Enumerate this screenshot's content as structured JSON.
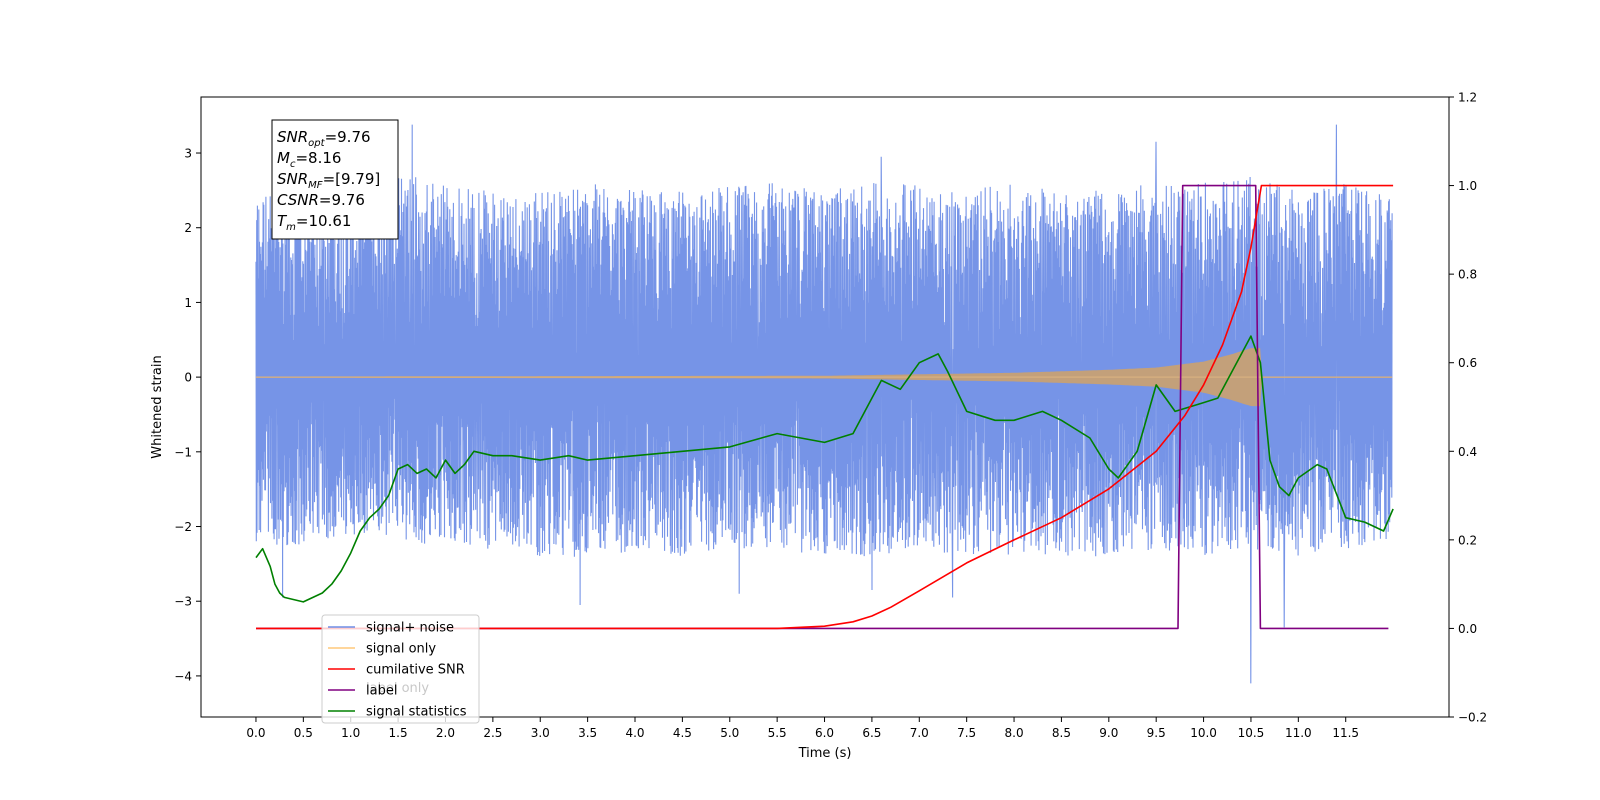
{
  "chart_data": {
    "type": "line",
    "title": "",
    "xlabel": "Time (s)",
    "ylabel": "Whitened strain",
    "xlim": [
      -0.58,
      12.59
    ],
    "ylim": [
      -4.55,
      3.75
    ],
    "y2lim": [
      -0.2,
      1.2
    ],
    "x_ticks": [
      0.0,
      0.5,
      1.0,
      1.5,
      2.0,
      2.5,
      3.0,
      3.5,
      4.0,
      4.5,
      5.0,
      5.5,
      6.0,
      6.5,
      7.0,
      7.5,
      8.0,
      8.5,
      9.0,
      9.5,
      10.0,
      10.5,
      11.0,
      11.5
    ],
    "x_tick_labels": [
      "0.0",
      "0.5",
      "1.0",
      "1.5",
      "2.0",
      "2.5",
      "3.0",
      "3.5",
      "4.0",
      "4.5",
      "5.0",
      "5.5",
      "6.0",
      "6.5",
      "7.0",
      "7.5",
      "8.0",
      "8.5",
      "9.0",
      "9.5",
      "10.0",
      "10.5",
      "11.0",
      "11.5"
    ],
    "y_ticks": [
      -4,
      -3,
      -2,
      -1,
      0,
      1,
      2,
      3
    ],
    "y_tick_labels": [
      "−4",
      "−3",
      "−2",
      "−1",
      "0",
      "1",
      "2",
      "3"
    ],
    "y2_ticks": [
      -0.2,
      0.0,
      0.2,
      0.4,
      0.6,
      0.8,
      1.0,
      1.2
    ],
    "y2_tick_labels": [
      "−0.2",
      "0.0",
      "0.2",
      "0.4",
      "0.6",
      "0.8",
      "1.0",
      "1.2"
    ],
    "grid": false,
    "legend_position": "lower-left",
    "annotation": {
      "lines": [
        {
          "base": "SNR",
          "sub": "opt",
          "value": "=9.76"
        },
        {
          "base": "M",
          "sub": "c",
          "value": "=8.16"
        },
        {
          "base": "SNR",
          "sub": "MF",
          "value": "=[9.79]"
        },
        {
          "base": "CSNR",
          "sub": "",
          "value": "=9.76"
        },
        {
          "base": "T",
          "sub": "m",
          "value": "=10.61"
        }
      ]
    },
    "series": [
      {
        "name": "signal+ noise",
        "color": "#6f8ee6",
        "axis": "left",
        "envelope": {
          "x": [
            0.0,
            0.5,
            1.0,
            1.5,
            2.0,
            2.5,
            3.0,
            3.5,
            4.0,
            4.5,
            5.0,
            5.5,
            6.0,
            6.5,
            7.0,
            7.5,
            8.0,
            8.5,
            9.0,
            9.5,
            10.0,
            10.5,
            11.0,
            11.5,
            12.0
          ],
          "upper": [
            2.5,
            2.4,
            2.6,
            2.8,
            2.6,
            2.5,
            2.5,
            2.6,
            2.5,
            2.5,
            2.6,
            2.6,
            2.5,
            2.6,
            2.6,
            2.5,
            2.6,
            2.5,
            2.5,
            2.6,
            2.6,
            2.7,
            2.5,
            2.6,
            2.4
          ],
          "lower": [
            -2.2,
            -2.3,
            -2.1,
            -2.2,
            -2.3,
            -2.3,
            -2.4,
            -2.5,
            -2.3,
            -2.4,
            -2.3,
            -2.3,
            -2.4,
            -2.4,
            -2.3,
            -2.4,
            -2.4,
            -2.4,
            -2.4,
            -2.3,
            -2.4,
            -2.3,
            -2.4,
            -2.3,
            -2.2
          ],
          "spikes": [
            {
              "x": 0.28,
              "y": -2.95
            },
            {
              "x": 1.65,
              "y": 3.38
            },
            {
              "x": 3.42,
              "y": -3.05
            },
            {
              "x": 5.1,
              "y": -2.9
            },
            {
              "x": 6.5,
              "y": -2.85
            },
            {
              "x": 6.6,
              "y": 2.95
            },
            {
              "x": 7.35,
              "y": -2.95
            },
            {
              "x": 9.5,
              "y": 3.15
            },
            {
              "x": 10.5,
              "y": -4.1
            },
            {
              "x": 10.85,
              "y": -3.35
            },
            {
              "x": 11.4,
              "y": 3.38
            }
          ]
        }
      },
      {
        "name": "signal only",
        "color": "#ffc87a",
        "axis": "left",
        "amplitude_envelope": {
          "x": [
            0.0,
            6.0,
            7.0,
            8.0,
            8.5,
            9.0,
            9.5,
            10.0,
            10.3,
            10.5,
            10.6,
            10.61,
            12.0
          ],
          "amp": [
            0.0,
            0.01,
            0.03,
            0.05,
            0.07,
            0.09,
            0.12,
            0.2,
            0.3,
            0.38,
            0.38,
            0.0,
            0.0
          ]
        }
      },
      {
        "name": "cumilative SNR",
        "color": "#ff0000",
        "axis": "right",
        "x": [
          0.0,
          5.5,
          6.0,
          6.3,
          6.5,
          6.7,
          7.0,
          7.5,
          8.0,
          8.5,
          9.0,
          9.5,
          9.8,
          10.0,
          10.2,
          10.4,
          10.5,
          10.61,
          12.0
        ],
        "values": [
          0.0,
          0.0,
          0.005,
          0.015,
          0.028,
          0.048,
          0.085,
          0.148,
          0.2,
          0.25,
          0.315,
          0.4,
          0.48,
          0.55,
          0.64,
          0.76,
          0.86,
          1.0,
          1.0
        ]
      },
      {
        "name": "label",
        "color": "#800080",
        "axis": "right",
        "x": [
          0.0,
          9.73,
          9.78,
          10.55,
          10.6,
          11.95
        ],
        "values": [
          0.0,
          0.0,
          1.0,
          1.0,
          0.0,
          0.0
        ]
      },
      {
        "name": "signal statistics",
        "color": "#008000",
        "axis": "right",
        "x": [
          0.0,
          0.07,
          0.15,
          0.2,
          0.25,
          0.3,
          0.5,
          0.7,
          0.8,
          0.9,
          1.0,
          1.1,
          1.2,
          1.3,
          1.4,
          1.5,
          1.6,
          1.7,
          1.8,
          1.9,
          2.0,
          2.1,
          2.2,
          2.3,
          2.5,
          2.7,
          3.0,
          3.3,
          3.5,
          4.0,
          4.5,
          5.0,
          5.5,
          6.0,
          6.3,
          6.5,
          6.6,
          6.8,
          7.0,
          7.2,
          7.3,
          7.5,
          7.8,
          8.0,
          8.3,
          8.5,
          8.8,
          9.0,
          9.1,
          9.3,
          9.5,
          9.7,
          9.85,
          10.0,
          10.15,
          10.35,
          10.5,
          10.6,
          10.7,
          10.8,
          10.9,
          11.0,
          11.2,
          11.3,
          11.5,
          11.7,
          11.9,
          12.0
        ],
        "values": [
          0.16,
          0.18,
          0.14,
          0.1,
          0.08,
          0.07,
          0.06,
          0.08,
          0.1,
          0.13,
          0.17,
          0.22,
          0.25,
          0.27,
          0.3,
          0.36,
          0.37,
          0.35,
          0.36,
          0.34,
          0.38,
          0.35,
          0.37,
          0.4,
          0.39,
          0.39,
          0.38,
          0.39,
          0.38,
          0.39,
          0.4,
          0.41,
          0.44,
          0.42,
          0.44,
          0.52,
          0.56,
          0.54,
          0.6,
          0.62,
          0.58,
          0.49,
          0.47,
          0.47,
          0.49,
          0.47,
          0.43,
          0.36,
          0.34,
          0.4,
          0.55,
          0.49,
          0.5,
          0.51,
          0.52,
          0.6,
          0.66,
          0.6,
          0.38,
          0.32,
          0.3,
          0.34,
          0.37,
          0.36,
          0.25,
          0.24,
          0.22,
          0.27
        ]
      }
    ],
    "legend": [
      {
        "label": "signal+ noise",
        "color": "#6f8ee6"
      },
      {
        "label": "signal only",
        "color": "#ffc87a"
      },
      {
        "label": "cumilative SNR",
        "color": "#ff0000"
      },
      {
        "label": "label",
        "color": "#800080"
      },
      {
        "label": "signal statistics",
        "color": "#008000"
      }
    ],
    "legend_occluded_text": [
      "label only"
    ]
  }
}
